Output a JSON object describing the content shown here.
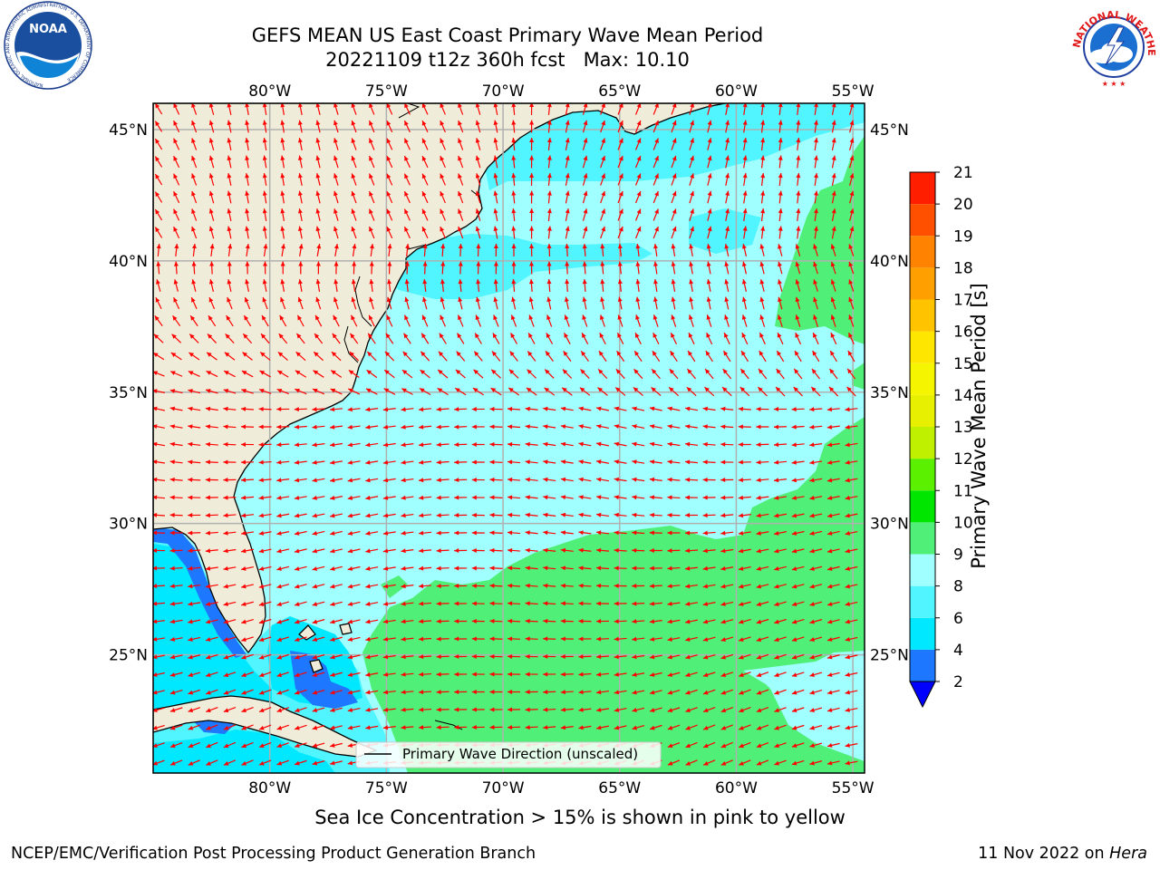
{
  "title": {
    "line1": "GEFS MEAN US East Coast Primary Wave Mean Period",
    "line2": "20221109 t12z 360h fcst   Max: 10.10"
  },
  "logos": {
    "left": {
      "name": "NOAA",
      "ring_text": "NATIONAL OCEANIC AND ATMOSPHERIC ADMINISTRATION · U.S. DEPARTMENT OF COMMERCE"
    },
    "right": {
      "ring_text": "NATIONAL WEATHER SERVICE"
    }
  },
  "map": {
    "lon_range": [
      -85,
      -54.5
    ],
    "lat_range": [
      20.5,
      46
    ],
    "lon_ticks": [
      {
        "value": -80,
        "label": "80°W"
      },
      {
        "value": -75,
        "label": "75°W"
      },
      {
        "value": -70,
        "label": "70°W"
      },
      {
        "value": -65,
        "label": "65°W"
      },
      {
        "value": -60,
        "label": "60°W"
      },
      {
        "value": -55,
        "label": "55°W"
      }
    ],
    "lat_ticks": [
      {
        "value": 45,
        "label": "45°N"
      },
      {
        "value": 40,
        "label": "40°N"
      },
      {
        "value": 35,
        "label": "35°N"
      },
      {
        "value": 30,
        "label": "30°N"
      },
      {
        "value": 25,
        "label": "25°N"
      }
    ],
    "colors": {
      "land": "#efedd9",
      "coast": "#000000",
      "grid": "#b0b0b0",
      "arrow": "#ff0000"
    },
    "legend_label": "Primary Wave Direction (unscaled)"
  },
  "colorbar": {
    "label": "Primary Wave Mean Period [s]",
    "under_color": "#0000ff",
    "bins": [
      {
        "from": 2,
        "to": 4,
        "color": "#1e78ff"
      },
      {
        "from": 4,
        "to": 6,
        "color": "#00e8ff"
      },
      {
        "from": 6,
        "to": 8,
        "color": "#50f5ff"
      },
      {
        "from": 8,
        "to": 9,
        "color": "#a0ffff"
      },
      {
        "from": 9,
        "to": 10,
        "color": "#50f078"
      },
      {
        "from": 10,
        "to": 11,
        "color": "#00e600"
      },
      {
        "from": 11,
        "to": 12,
        "color": "#5af000"
      },
      {
        "from": 12,
        "to": 13,
        "color": "#bef000"
      },
      {
        "from": 13,
        "to": 14,
        "color": "#e6f000"
      },
      {
        "from": 14,
        "to": 15,
        "color": "#f5f500"
      },
      {
        "from": 15,
        "to": 16,
        "color": "#ffe600"
      },
      {
        "from": 16,
        "to": 17,
        "color": "#ffc300"
      },
      {
        "from": 17,
        "to": 18,
        "color": "#ffa000"
      },
      {
        "from": 18,
        "to": 19,
        "color": "#ff8200"
      },
      {
        "from": 19,
        "to": 20,
        "color": "#ff5000"
      },
      {
        "from": 20,
        "to": 21,
        "color": "#ff1e00"
      }
    ],
    "tick_labels": [
      "2",
      "4",
      "6",
      "8",
      "9",
      "10",
      "11",
      "12",
      "13",
      "14",
      "15",
      "16",
      "17",
      "18",
      "19",
      "20",
      "21"
    ]
  },
  "note": "Sea Ice Concentration > 15% is shown in pink to yellow",
  "footer": {
    "left": "NCEP/EMC/Verification Post Processing Product Generation Branch",
    "right_prefix": "11 Nov 2022 on ",
    "right_machine": "Hera"
  }
}
